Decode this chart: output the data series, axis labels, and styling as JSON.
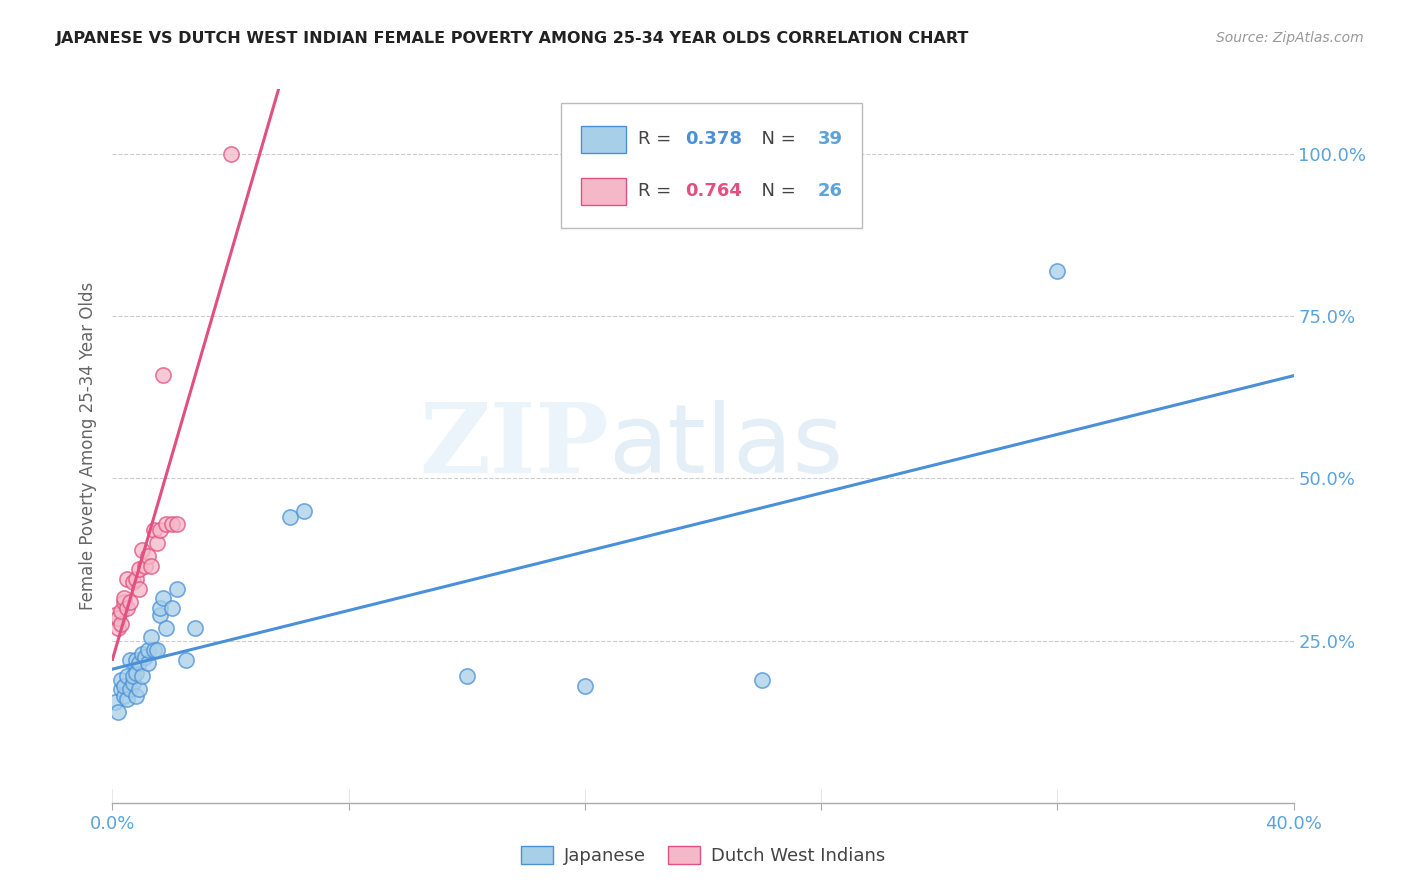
{
  "title": "JAPANESE VS DUTCH WEST INDIAN FEMALE POVERTY AMONG 25-34 YEAR OLDS CORRELATION CHART",
  "source": "Source: ZipAtlas.com",
  "ylabel": "Female Poverty Among 25-34 Year Olds",
  "watermark_zip": "ZIP",
  "watermark_atlas": "atlas",
  "japanese_color": "#a8cfe8",
  "dwi_color": "#f4b8c8",
  "japanese_line_color": "#4a90d9",
  "dwi_line_color": "#e05080",
  "right_axis_color": "#5ba3d9",
  "title_color": "#222222",
  "grid_color": "#cccccc",
  "background_color": "#ffffff",
  "japanese_x": [
    0.001,
    0.002,
    0.003,
    0.003,
    0.004,
    0.004,
    0.005,
    0.005,
    0.006,
    0.006,
    0.007,
    0.007,
    0.008,
    0.008,
    0.008,
    0.009,
    0.009,
    0.01,
    0.01,
    0.011,
    0.012,
    0.012,
    0.013,
    0.014,
    0.015,
    0.016,
    0.016,
    0.017,
    0.018,
    0.02,
    0.022,
    0.025,
    0.028,
    0.06,
    0.065,
    0.12,
    0.16,
    0.22,
    0.32
  ],
  "japanese_y": [
    0.155,
    0.14,
    0.175,
    0.19,
    0.165,
    0.18,
    0.16,
    0.195,
    0.175,
    0.22,
    0.185,
    0.195,
    0.165,
    0.2,
    0.22,
    0.175,
    0.215,
    0.195,
    0.23,
    0.225,
    0.215,
    0.235,
    0.255,
    0.235,
    0.235,
    0.29,
    0.3,
    0.315,
    0.27,
    0.3,
    0.33,
    0.22,
    0.27,
    0.44,
    0.45,
    0.195,
    0.18,
    0.19,
    0.82
  ],
  "dwi_x": [
    0.001,
    0.002,
    0.002,
    0.003,
    0.003,
    0.004,
    0.004,
    0.005,
    0.005,
    0.006,
    0.007,
    0.008,
    0.009,
    0.009,
    0.01,
    0.011,
    0.012,
    0.013,
    0.014,
    0.015,
    0.016,
    0.017,
    0.018,
    0.02,
    0.022,
    0.04
  ],
  "dwi_y": [
    0.29,
    0.27,
    0.285,
    0.275,
    0.295,
    0.31,
    0.315,
    0.3,
    0.345,
    0.31,
    0.34,
    0.345,
    0.36,
    0.33,
    0.39,
    0.365,
    0.38,
    0.365,
    0.42,
    0.4,
    0.42,
    0.66,
    0.43,
    0.43,
    0.43,
    1.0
  ],
  "xlim": [
    0.0,
    0.4
  ],
  "ylim": [
    0.0,
    1.1
  ],
  "xtick_positions": [
    0.0,
    0.08,
    0.16,
    0.24,
    0.32,
    0.4
  ],
  "ytick_right_positions": [
    0.25,
    0.5,
    0.75,
    1.0
  ],
  "ytick_right_labels": [
    "25.0%",
    "50.0%",
    "75.0%",
    "100.0%"
  ]
}
